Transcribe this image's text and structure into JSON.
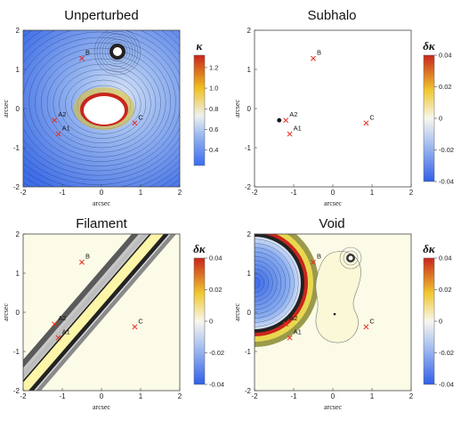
{
  "panels": [
    {
      "title": "Unperturbed",
      "type": "contour",
      "xlabel": "arcsec",
      "ylabel": "arcsec",
      "colorbar": {
        "symbol": "κ",
        "ticks": [
          {
            "value": 1.2,
            "label": "1.2"
          },
          {
            "value": 1.0,
            "label": "1.0"
          },
          {
            "value": 0.8,
            "label": "0.8"
          },
          {
            "value": 0.6,
            "label": "0.6"
          },
          {
            "value": 0.4,
            "label": "0.4"
          }
        ]
      }
    },
    {
      "title": "Subhalo",
      "type": "scatter",
      "xlabel": "arcsec",
      "ylabel": "arcsec",
      "colorbar": {
        "symbol": "δκ",
        "ticks": [
          {
            "value": 0.04,
            "label": "0.04"
          },
          {
            "value": 0.02,
            "label": "0.02"
          },
          {
            "value": 0,
            "label": "0"
          },
          {
            "value": -0.02,
            "label": "-0.02"
          },
          {
            "value": -0.04,
            "label": "-0.04"
          }
        ]
      }
    },
    {
      "title": "Filament",
      "type": "contour",
      "xlabel": "arcsec",
      "ylabel": "arcsec",
      "colorbar": {
        "symbol": "δκ",
        "ticks": [
          {
            "value": 0.04,
            "label": "0.04"
          },
          {
            "value": 0.02,
            "label": "0.02"
          },
          {
            "value": 0,
            "label": "0"
          },
          {
            "value": -0.02,
            "label": "-0.02"
          },
          {
            "value": -0.04,
            "label": "-0.04"
          }
        ]
      }
    },
    {
      "title": "Void",
      "type": "contour",
      "xlabel": "arcsec",
      "ylabel": "arcsec",
      "colorbar": {
        "symbol": "δκ",
        "ticks": [
          {
            "value": 0.04,
            "label": "0.04"
          },
          {
            "value": 0.02,
            "label": "0.02"
          },
          {
            "value": 0,
            "label": "0"
          },
          {
            "value": -0.02,
            "label": "-0.02"
          },
          {
            "value": -0.04,
            "label": "-0.04"
          }
        ]
      }
    }
  ],
  "chart_data": {
    "type": "scatter",
    "xlim": [
      -2,
      2
    ],
    "ylim": [
      -2,
      2
    ],
    "xticks": [
      "-2",
      "-1",
      "0",
      "1",
      "2"
    ],
    "yticks": [
      "-2",
      "-1",
      "0",
      "1",
      "2"
    ],
    "images": [
      {
        "name": "A1",
        "x": -1.1,
        "y": -0.65
      },
      {
        "name": "A2",
        "x": -1.2,
        "y": -0.3
      },
      {
        "name": "B",
        "x": -0.5,
        "y": 1.28
      },
      {
        "name": "C",
        "x": 0.85,
        "y": -0.37
      }
    ],
    "subhalo_position": {
      "x": -1.37,
      "y": -0.3
    },
    "grid": false
  },
  "colors": {
    "blue": "#3a6cf0",
    "white": "#f6f8e8",
    "yellow": "#f0c020",
    "red": "#d0301c",
    "marker": "#e8281c",
    "filament": "#fbf9c0",
    "background_cream": "#fbfbe8"
  }
}
